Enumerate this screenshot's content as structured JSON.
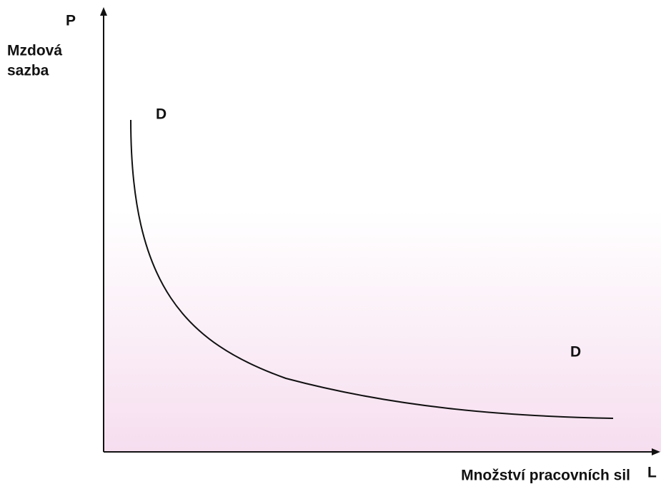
{
  "axes": {
    "y_label_top": "P",
    "y_label": [
      "Mzdová",
      "sazba"
    ],
    "x_label": "Množství pracovních sil",
    "x_label_end": "L"
  },
  "curve_labels": [
    "D",
    "D"
  ]
}
